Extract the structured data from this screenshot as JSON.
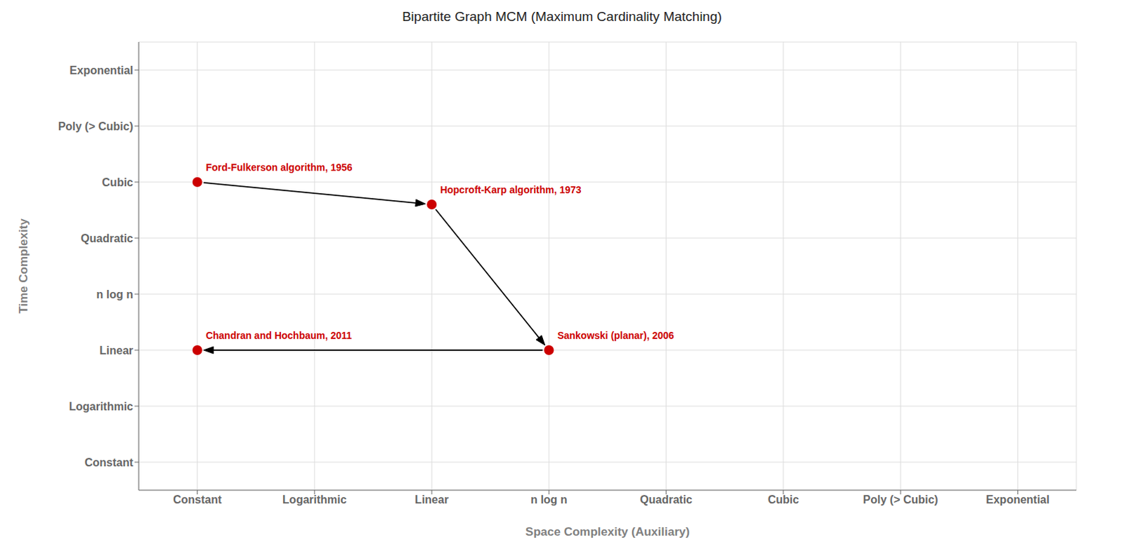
{
  "chart_data": {
    "type": "scatter",
    "title": "Bipartite Graph MCM (Maximum Cardinality Matching)",
    "x_label": "Space Complexity (Auxiliary)",
    "y_label": "Time Complexity",
    "xlim": [
      -0.5,
      7.5
    ],
    "ylim": [
      -0.5,
      7.5
    ],
    "xticks": [
      {
        "value": 0,
        "label": "Constant"
      },
      {
        "value": 1,
        "label": "Logarithmic"
      },
      {
        "value": 2,
        "label": "Linear"
      },
      {
        "value": 3,
        "label": "n log n"
      },
      {
        "value": 4,
        "label": "Quadratic"
      },
      {
        "value": 5,
        "label": "Cubic"
      },
      {
        "value": 6,
        "label": "Poly (> Cubic)"
      },
      {
        "value": 7,
        "label": "Exponential"
      }
    ],
    "yticks": [
      {
        "value": 0,
        "label": "Constant"
      },
      {
        "value": 1,
        "label": "Logarithmic"
      },
      {
        "value": 2,
        "label": "Linear"
      },
      {
        "value": 3,
        "label": "n log n"
      },
      {
        "value": 4,
        "label": "Quadratic"
      },
      {
        "value": 5,
        "label": "Cubic"
      },
      {
        "value": 6,
        "label": "Poly (> Cubic)"
      },
      {
        "value": 7,
        "label": "Exponential"
      }
    ],
    "grid": true,
    "series": [
      {
        "type": "scatter",
        "color": "#CC0000",
        "values": [
          {
            "x": 0,
            "y": 5,
            "label": "Ford-Fulkerson algorithm, 1956"
          },
          {
            "x": 2,
            "y": 4.6,
            "label": "Hopcroft-Karp algorithm, 1973"
          },
          {
            "x": 3,
            "y": 2,
            "label": "Sankowski (planar), 2006"
          },
          {
            "x": 0,
            "y": 2,
            "label": "Chandran and Hochbaum, 2011"
          }
        ]
      },
      {
        "type": "arrow",
        "color": "#000000",
        "values": [
          {
            "x_start": 0,
            "y_start": 5,
            "x_end": 2,
            "y_end": 4.6
          },
          {
            "x_start": 2,
            "y_start": 4.6,
            "x_end": 3,
            "y_end": 2
          },
          {
            "x_start": 3,
            "y_start": 2,
            "x_end": 0,
            "y_end": 2
          }
        ]
      }
    ]
  }
}
